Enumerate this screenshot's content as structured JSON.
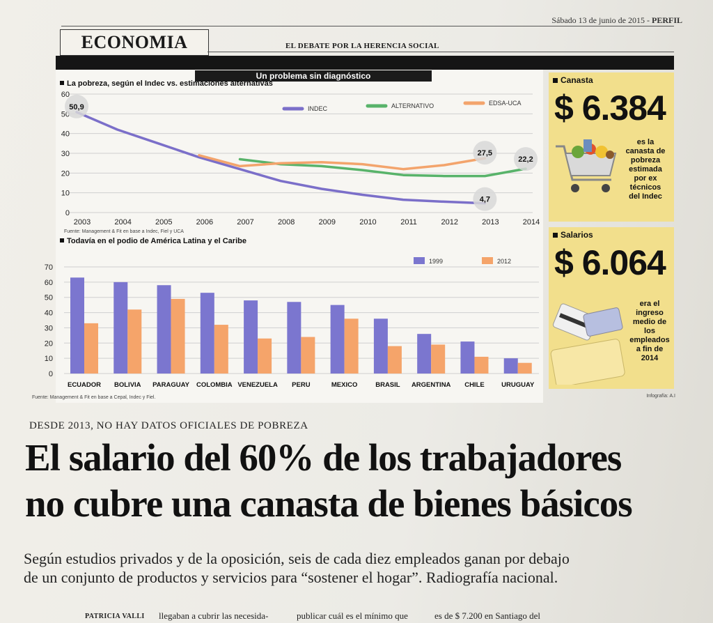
{
  "page": {
    "date_line": "Sábado 13 de junio de 2015 - ",
    "paper_name": "PERFIL",
    "section": "ECONOMIA",
    "section_subtitle": "EL DEBATE POR LA HERENCIA SOCIAL",
    "infographic_title": "Un problema sin diagnóstico",
    "credit": "Infografía: A.I",
    "kicker": "DESDE 2013, NO HAY DATOS OFICIALES DE POBREZA",
    "headline_line1": "El salario del 60% de los trabajadores",
    "headline_line2": "no cubre una canasta de bienes básicos",
    "dek_line1": "Según estudios privados y de la oposición, seis de cada diez empleados ganan por debajo",
    "dek_line2": "de un conjunto de productos y servicios para “sostener el hogar”. Radiografía nacional.",
    "byline": "PATRICIA VALLI",
    "col1_snippet": "llegaban a cubrir las necesida-",
    "col2_snippet": "publicar cuál es el mínimo que",
    "col3_snippet": "es de $ 7.200 en Santiago del"
  },
  "panels": {
    "canasta": {
      "label": "Canasta",
      "amount": "$ 6.384",
      "note_lines": [
        "es la",
        "canasta de",
        "pobreza",
        "estimada",
        "por ex",
        "técnicos",
        "del Indec"
      ]
    },
    "salarios": {
      "label": "Salarios",
      "amount": "$ 6.064",
      "note_lines": [
        "era el",
        "ingreso",
        "medio de",
        "los",
        "empleados",
        "a fin de",
        "2014"
      ]
    }
  },
  "chart_data": [
    {
      "type": "line",
      "title": "La pobreza, según el Indec vs. estimaciones alternativas",
      "source": "Fuente: Management & Fit en base a Indec, Fiel y UCA",
      "x": [
        2003,
        2004,
        2005,
        2006,
        2007,
        2008,
        2009,
        2010,
        2011,
        2012,
        2013,
        2014
      ],
      "ylim": [
        0,
        60
      ],
      "yticks": [
        0,
        10,
        20,
        30,
        40,
        50,
        60
      ],
      "grid": true,
      "legend_position": "top",
      "series": [
        {
          "name": "INDEC",
          "color": "#7b6fc9",
          "x": [
            2003,
            2004,
            2005,
            2006,
            2007,
            2008,
            2009,
            2010,
            2011,
            2012,
            2013
          ],
          "values": [
            50.9,
            42,
            35,
            28,
            22,
            16,
            12,
            9,
            6.5,
            5.5,
            4.7
          ]
        },
        {
          "name": "ALTERNATIVO",
          "color": "#58b36a",
          "x": [
            2007,
            2008,
            2009,
            2010,
            2011,
            2012,
            2013,
            2014
          ],
          "values": [
            27,
            24.5,
            23.5,
            21.5,
            19,
            18.5,
            18.5,
            22.2
          ]
        },
        {
          "name": "EDSA-UCA",
          "color": "#f3a46c",
          "x": [
            2006,
            2007,
            2008,
            2009,
            2010,
            2011,
            2012,
            2013
          ],
          "values": [
            29,
            23.5,
            25,
            25.5,
            24.5,
            22,
            24,
            27.5
          ]
        }
      ],
      "data_labels": [
        {
          "x": 2003,
          "y": 50.9,
          "text": "50,9"
        },
        {
          "x": 2013,
          "y": 27.5,
          "text": "27,5"
        },
        {
          "x": 2014,
          "y": 22.2,
          "text": "22,2"
        },
        {
          "x": 2013,
          "y": 4.7,
          "text": "4,7"
        }
      ]
    },
    {
      "type": "bar",
      "title": "Todavía en el podio de América Latina y el Caribe",
      "source": "Fuente: Management & Fit en base a Cepal, Indec y Fiel.",
      "categories": [
        "ECUADOR",
        "BOLIVIA",
        "PARAGUAY",
        "COLOMBIA",
        "VENEZUELA",
        "PERU",
        "MEXICO",
        "BRASIL",
        "ARGENTINA",
        "CHILE",
        "URUGUAY"
      ],
      "ylim": [
        0,
        70
      ],
      "yticks": [
        0,
        10,
        20,
        30,
        40,
        50,
        60,
        70
      ],
      "grid": true,
      "legend_position": "top-right",
      "series": [
        {
          "name": "1999",
          "color": "#7b76cf",
          "values": [
            63,
            60,
            58,
            53,
            48,
            47,
            45,
            36,
            26,
            21,
            10
          ]
        },
        {
          "name": "2012",
          "color": "#f5a46a",
          "values": [
            33,
            42,
            49,
            32,
            23,
            24,
            36,
            18,
            19,
            11,
            7
          ]
        }
      ]
    }
  ]
}
